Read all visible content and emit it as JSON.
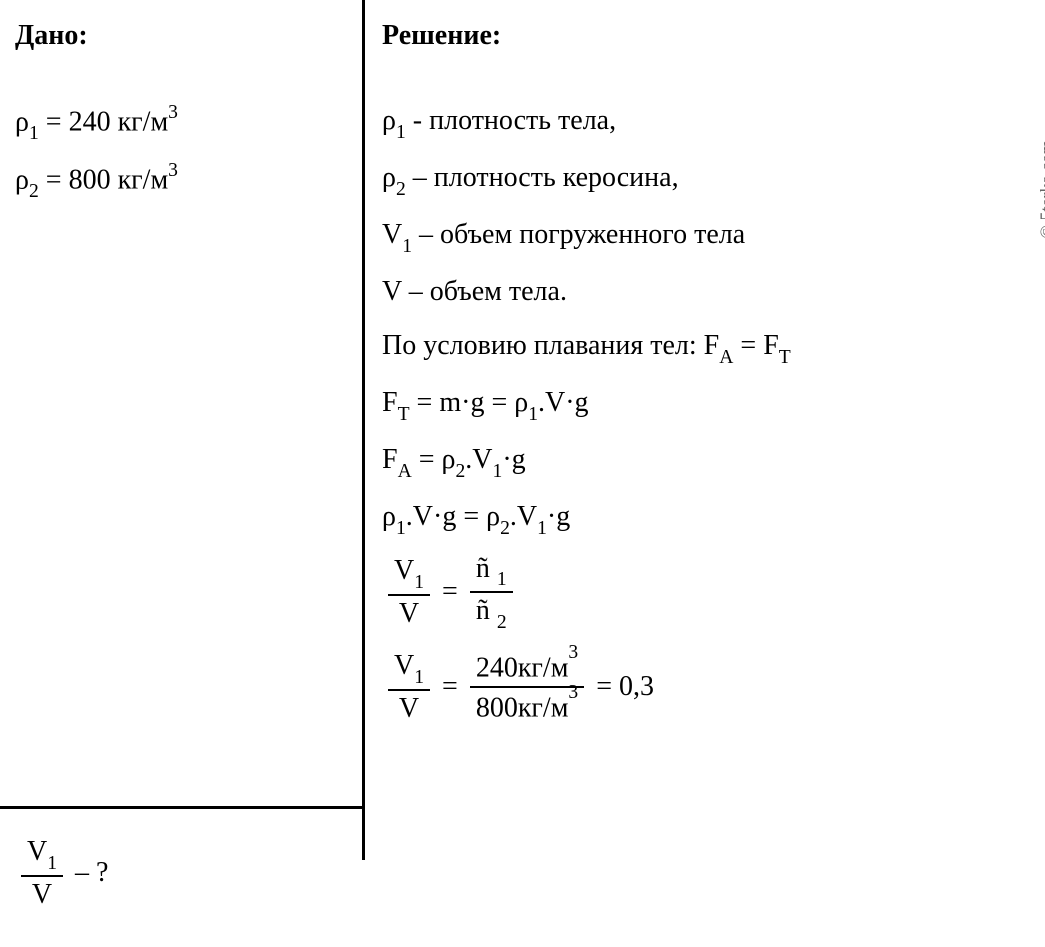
{
  "watermark": "© 5terka.com",
  "given": {
    "heading": "Дано:",
    "rho1_label": "ρ",
    "rho1_sub": "1",
    "rho1_eq": " = 240 кг/м",
    "rho1_sup": "3",
    "rho2_label": "ρ",
    "rho2_sub": "2",
    "rho2_eq": " = 800 кг/м",
    "rho2_sup": "3"
  },
  "question": {
    "v1_num": "V",
    "v1_num_sub": "1",
    "v_den": "V",
    "tail": " – ?"
  },
  "solution": {
    "heading": "Решение:",
    "line1_pre": "ρ",
    "line1_sub": "1",
    "line1_post": " - плотность тела,",
    "line2_pre": "ρ",
    "line2_sub": "2",
    "line2_post": " – плотность керосина,",
    "line3_pre": "V",
    "line3_sub": "1",
    "line3_post": " – объем погруженного тела",
    "line4_pre": "V – объем тела.",
    "line5_text": "По условию плавания тел: F",
    "line5_subA": "А",
    "line5_eq": " = F",
    "line5_subT": "Т",
    "line6_F": "F",
    "line6_subT": "Т",
    "line6_mid": " = m·g = ρ",
    "line6_sub1": "1",
    "line6_end": ".V·g",
    "line7_F": "F",
    "line7_subA": "А",
    "line7_mid": " =  ρ",
    "line7_sub2": "2",
    "line7_end": ".V",
    "line7_subV1": "1",
    "line7_g": "·g",
    "line8_rho": "ρ",
    "line8_sub1": "1",
    "line8_mid1": ".V·g = ρ",
    "line8_sub2": "2",
    "line8_mid2": ".V",
    "line8_subV1": "1",
    "line8_end": "·g",
    "frac1_num_V": "V",
    "frac1_num_sub": "1",
    "frac1_den": "V",
    "frac1_eq": "=",
    "frac1b_num": "ñ",
    "frac1b_num_sub": "1",
    "frac1b_den": "ñ",
    "frac1b_den_sub": "2",
    "frac2_num_V": "V",
    "frac2_num_sub": "1",
    "frac2_den": "V",
    "frac2_eq": "=",
    "frac2b_num": "240кг/м",
    "frac2b_num_sup": "3",
    "frac2b_den": "800кг/м",
    "frac2b_den_sup": "3",
    "frac2_result": "= 0,3"
  }
}
